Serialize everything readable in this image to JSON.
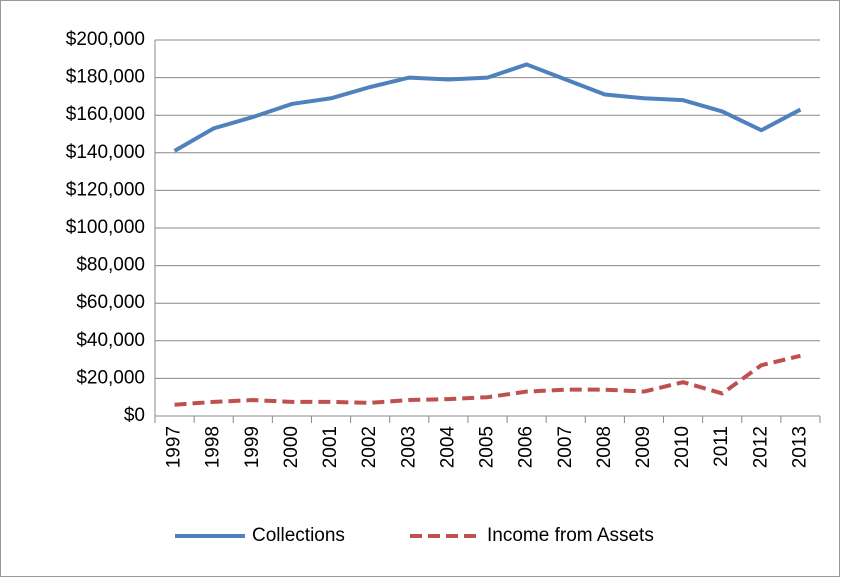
{
  "chart_data": {
    "type": "line",
    "categories": [
      "1997",
      "1998",
      "1999",
      "2000",
      "2001",
      "2002",
      "2003",
      "2004",
      "2005",
      "2006",
      "2007",
      "2008",
      "2009",
      "2010",
      "2011",
      "2012",
      "2013"
    ],
    "series": [
      {
        "name": "Collections",
        "color": "#4f81bd",
        "style": "solid",
        "values": [
          141000,
          153000,
          159000,
          166000,
          169000,
          175000,
          180000,
          179000,
          180000,
          187000,
          179000,
          171000,
          169000,
          168000,
          162000,
          152000,
          163000
        ]
      },
      {
        "name": "Income from Assets",
        "color": "#c0504d",
        "style": "dashed",
        "values": [
          6000,
          7500,
          8500,
          7500,
          7500,
          7000,
          8500,
          9000,
          10000,
          13000,
          14000,
          14000,
          13000,
          18000,
          12000,
          27000,
          32000
        ]
      }
    ],
    "ylim": [
      0,
      200000
    ],
    "yticks": [
      {
        "value": 0,
        "label": "$0"
      },
      {
        "value": 20000,
        "label": "$20,000"
      },
      {
        "value": 40000,
        "label": "$40,000"
      },
      {
        "value": 60000,
        "label": "$60,000"
      },
      {
        "value": 80000,
        "label": "$80,000"
      },
      {
        "value": 100000,
        "label": "$100,000"
      },
      {
        "value": 120000,
        "label": "$120,000"
      },
      {
        "value": 140000,
        "label": "$140,000"
      },
      {
        "value": 160000,
        "label": "$160,000"
      },
      {
        "value": 180000,
        "label": "$180,000"
      },
      {
        "value": 200000,
        "label": "$200,000"
      }
    ],
    "grid": true,
    "legend": "bottom"
  }
}
